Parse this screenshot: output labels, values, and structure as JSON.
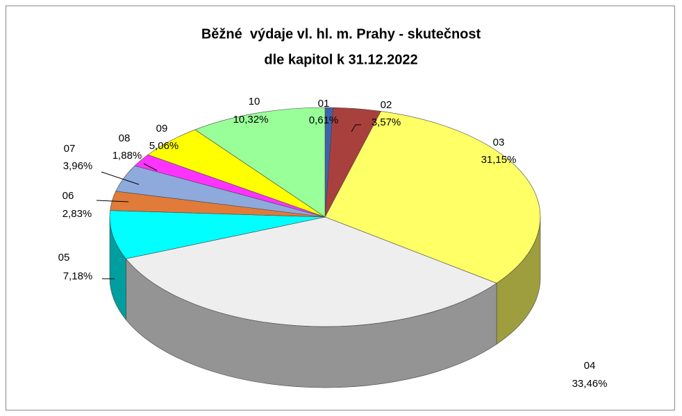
{
  "chart_data": {
    "type": "pie3d",
    "title": [
      "Běžné  výdaje vl. hl. m. Prahy - skutečnost",
      "dle kapitol k 31.12.2022"
    ],
    "categories": [
      "01",
      "02",
      "03",
      "04",
      "05",
      "06",
      "07",
      "08",
      "09",
      "10"
    ],
    "values": [
      0.61,
      3.57,
      31.15,
      33.46,
      7.18,
      2.83,
      3.96,
      1.88,
      5.06,
      10.32
    ],
    "value_labels": [
      "0,61%",
      "3,57%",
      "31,15%",
      "33,46%",
      "7,18%",
      "2,83%",
      "3,96%",
      "1,88%",
      "5,06%",
      "10,32%"
    ],
    "colors": [
      "#3f63a8",
      "#a8403e",
      "#ffff66",
      "#eeeeee",
      "#00ffff",
      "#e07b39",
      "#8ea9db",
      "#ff33ff",
      "#ffff00",
      "#99ff99"
    ]
  }
}
